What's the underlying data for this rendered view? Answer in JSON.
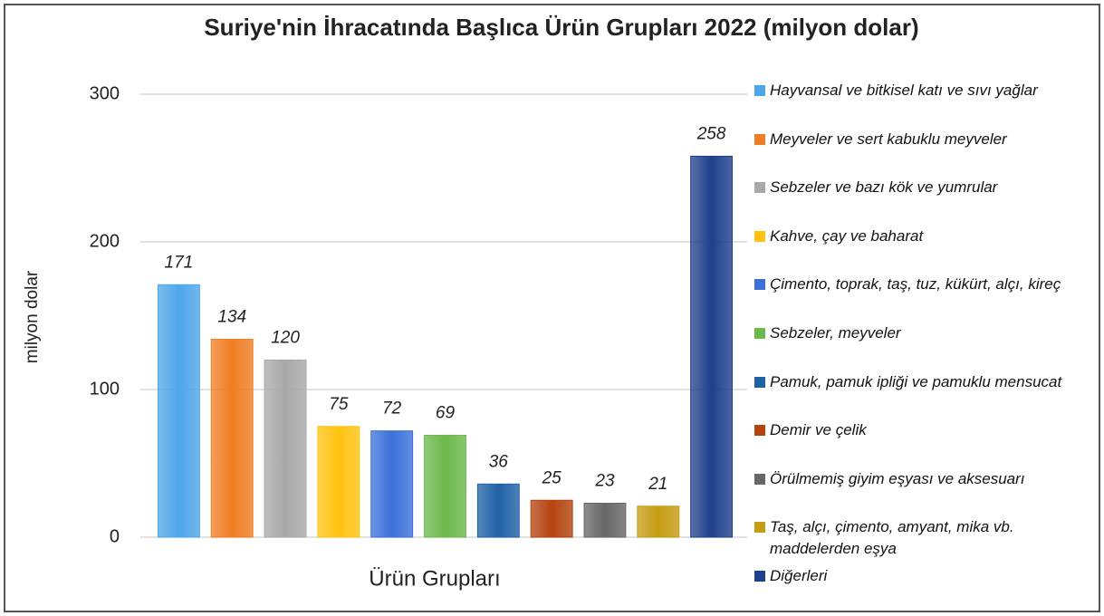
{
  "chart_data": {
    "type": "bar",
    "title": "Suriye'nin İhracatında Başlıca Ürün Grupları 2022 (milyon dolar)",
    "x_label": "Ürün Grupları",
    "y_label": "milyon dolar",
    "categories": [
      "Hayvansal ve bitkisel katı ve sıvı yağlar",
      "Meyveler ve sert kabuklu meyveler",
      "Sebzeler ve bazı kök ve yumrular",
      "Kahve, çay ve baharat",
      "Çimento, toprak, taş, tuz, kükürt, alçı, kireç",
      "Sebzeler, meyveler",
      "Pamuk, pamuk ipliği ve pamuklu mensucat",
      "Demir ve çelik",
      "Örülmemiş giyim eşyası ve aksesuarı",
      "Taş, alçı, çimento, amyant, mika vb. maddelerden eşya",
      "Diğerleri"
    ],
    "values": [
      171,
      134,
      120,
      75,
      72,
      69,
      36,
      25,
      23,
      21,
      258
    ],
    "colors": [
      "#4ea6ea",
      "#f07d22",
      "#a8a8a8",
      "#ffc20e",
      "#3b70da",
      "#6cb84b",
      "#1f62a6",
      "#b4430f",
      "#676767",
      "#c69c12",
      "#1f408c"
    ],
    "ylim": [
      0,
      300
    ],
    "yticks": [
      0,
      100,
      200,
      300
    ],
    "grid": true,
    "legend": "right"
  }
}
